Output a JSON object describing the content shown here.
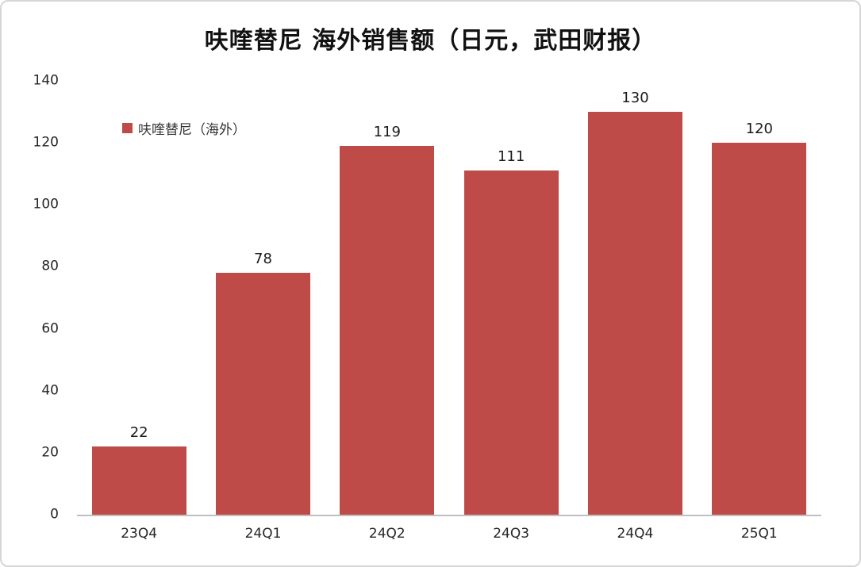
{
  "chart_data": {
    "type": "bar",
    "title": "呋喹替尼 海外销售额（日元，武田财报）",
    "legend": [
      "呋喹替尼（海外）"
    ],
    "categories": [
      "23Q4",
      "24Q1",
      "24Q2",
      "24Q3",
      "24Q4",
      "25Q1"
    ],
    "values": [
      22,
      78,
      119,
      111,
      130,
      120
    ],
    "ylim": [
      0,
      140
    ],
    "ytick_step": 20,
    "yticks": [
      0,
      20,
      40,
      60,
      80,
      100,
      120,
      140
    ],
    "grid": false,
    "legend_position": "inside-top-left",
    "colors": {
      "bar": "#BE4B48",
      "axis_line": "#BFBFBF",
      "text": "#262626",
      "card_border": "#D6D6D6"
    }
  }
}
